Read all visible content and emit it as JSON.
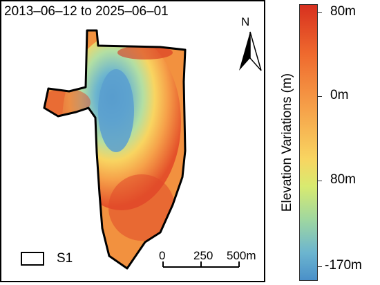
{
  "map": {
    "date_range": "2013–06–12 to 2025–06–01",
    "north_label": "N",
    "legend_label": "S1",
    "scale_labels": [
      "0",
      "250",
      "500m"
    ]
  },
  "colorbar": {
    "title": "Elevation Variations (m)",
    "tick_labels": [
      "80m",
      "0m",
      "80m",
      "-170m"
    ],
    "colors": [
      "#d7301f",
      "#ef6a2e",
      "#f6a24a",
      "#f8d561",
      "#d8ea70",
      "#9fd7a0",
      "#6cb5cf",
      "#4a90c9"
    ]
  }
}
